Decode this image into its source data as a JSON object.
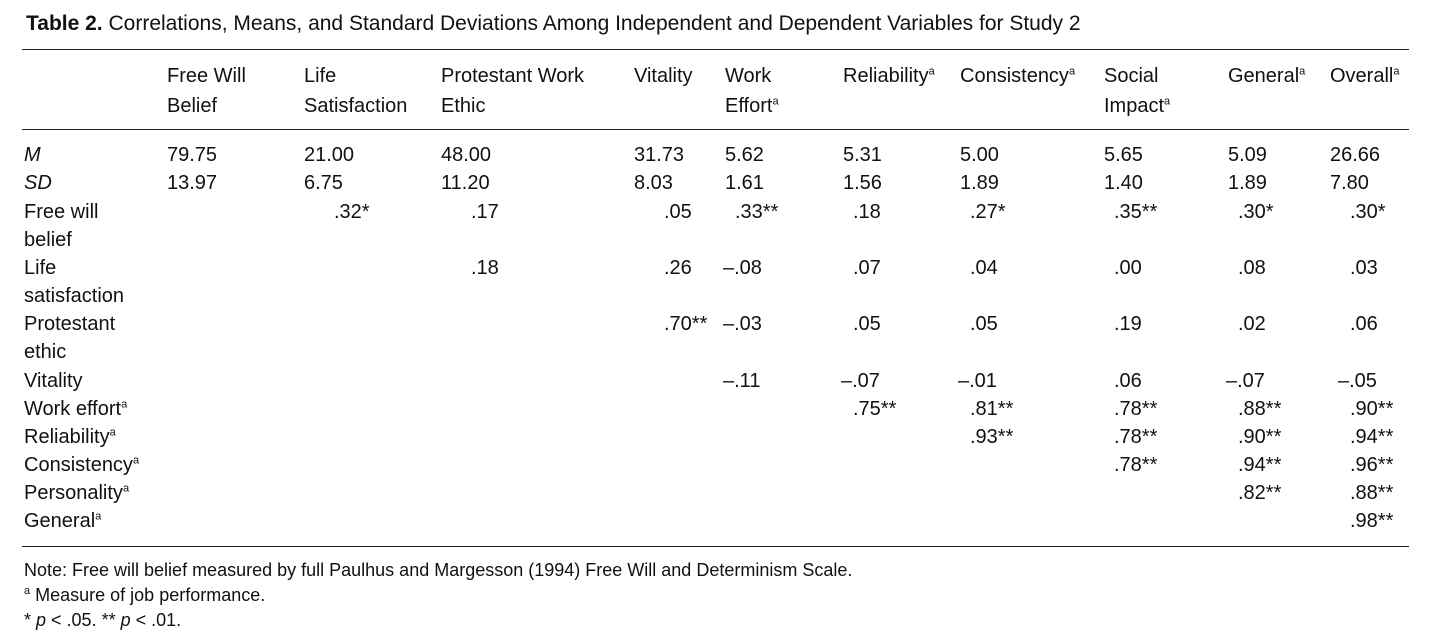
{
  "caption": {
    "label": "Table 2.",
    "text": "Correlations, Means, and Standard Deviations Among Independent and Dependent Variables for Study 2"
  },
  "columns": [
    {
      "line1": "Free Will",
      "line2": "Belief",
      "sup": ""
    },
    {
      "line1": "Life",
      "line2": "Satisfaction",
      "sup": ""
    },
    {
      "line1": "Protestant Work",
      "line2": "Ethic",
      "sup": ""
    },
    {
      "line1": "",
      "line2": "Vitality",
      "sup": ""
    },
    {
      "line1": "Work",
      "line2": "Effort",
      "sup": "a"
    },
    {
      "line1": "",
      "line2": "Reliability",
      "sup": "a"
    },
    {
      "line1": "",
      "line2": "Consistency",
      "sup": "a"
    },
    {
      "line1": "Social",
      "line2": "Impact",
      "sup": "a"
    },
    {
      "line1": "",
      "line2": "General",
      "sup": "a"
    },
    {
      "line1": "",
      "line2": "Overall",
      "sup": "a"
    }
  ],
  "rows": [
    {
      "line1": "M",
      "line2": "",
      "sup": "",
      "italic": true,
      "cells": [
        "79.75",
        "21.00",
        "48.00",
        "31.73",
        "5.62",
        "5.31",
        "5.00",
        "5.65",
        "5.09",
        "26.66"
      ]
    },
    {
      "line1": "SD",
      "line2": "",
      "sup": "",
      "italic": true,
      "cells": [
        "13.97",
        "6.75",
        "11.20",
        "8.03",
        "1.61",
        "1.56",
        "1.89",
        "1.40",
        "1.89",
        "7.80"
      ]
    },
    {
      "line1": "Free will",
      "line2": "belief",
      "sup": "",
      "italic": false,
      "cells": [
        "",
        ".32*",
        ".17",
        ".05",
        ".33**",
        ".18",
        ".27*",
        ".35**",
        ".30*",
        ".30*"
      ]
    },
    {
      "line1": "Life",
      "line2": "satisfaction",
      "sup": "",
      "italic": false,
      "cells": [
        "",
        "",
        ".18",
        ".26",
        "–.08",
        ".07",
        ".04",
        ".00",
        ".08",
        ".03"
      ]
    },
    {
      "line1": "Protestant",
      "line2": "ethic",
      "sup": "",
      "italic": false,
      "cells": [
        "",
        "",
        "",
        ".70**",
        "–.03",
        ".05",
        ".05",
        ".19",
        ".02",
        ".06"
      ]
    },
    {
      "line1": "Vitality",
      "line2": "",
      "sup": "",
      "italic": false,
      "cells": [
        "",
        "",
        "",
        "",
        "–.11",
        "–.07",
        "–.01",
        ".06",
        "–.07",
        "–.05"
      ]
    },
    {
      "line1": "Work effort",
      "line2": "",
      "sup": "a",
      "italic": false,
      "cells": [
        "",
        "",
        "",
        "",
        "",
        ".75**",
        ".81**",
        ".78**",
        ".88**",
        ".90**"
      ]
    },
    {
      "line1": "Reliability",
      "line2": "",
      "sup": "a",
      "italic": false,
      "cells": [
        "",
        "",
        "",
        "",
        "",
        "",
        ".93**",
        ".78**",
        ".90**",
        ".94**"
      ]
    },
    {
      "line1": "Consistency",
      "line2": "",
      "sup": "a",
      "italic": false,
      "cells": [
        "",
        "",
        "",
        "",
        "",
        "",
        "",
        ".78**",
        ".94**",
        ".96**"
      ]
    },
    {
      "line1": "Personality",
      "line2": "",
      "sup": "a",
      "italic": false,
      "cells": [
        "",
        "",
        "",
        "",
        "",
        "",
        "",
        "",
        ".82**",
        ".88**"
      ]
    },
    {
      "line1": "General",
      "line2": "",
      "sup": "a",
      "italic": false,
      "cells": [
        "",
        "",
        "",
        "",
        "",
        "",
        "",
        "",
        "",
        ".98**"
      ]
    }
  ],
  "notes": {
    "note1": "Note: Free will belief measured by full Paulhus and Margesson (1994) Free Will and Determinism Scale.",
    "note2_sup": "a",
    "note2_text": " Measure of job performance.",
    "note3_p1": "p",
    "note3_t1": " < .05. ** ",
    "note3_p2": "p",
    "note3_t2": " < .01.",
    "note3_star": "* "
  }
}
